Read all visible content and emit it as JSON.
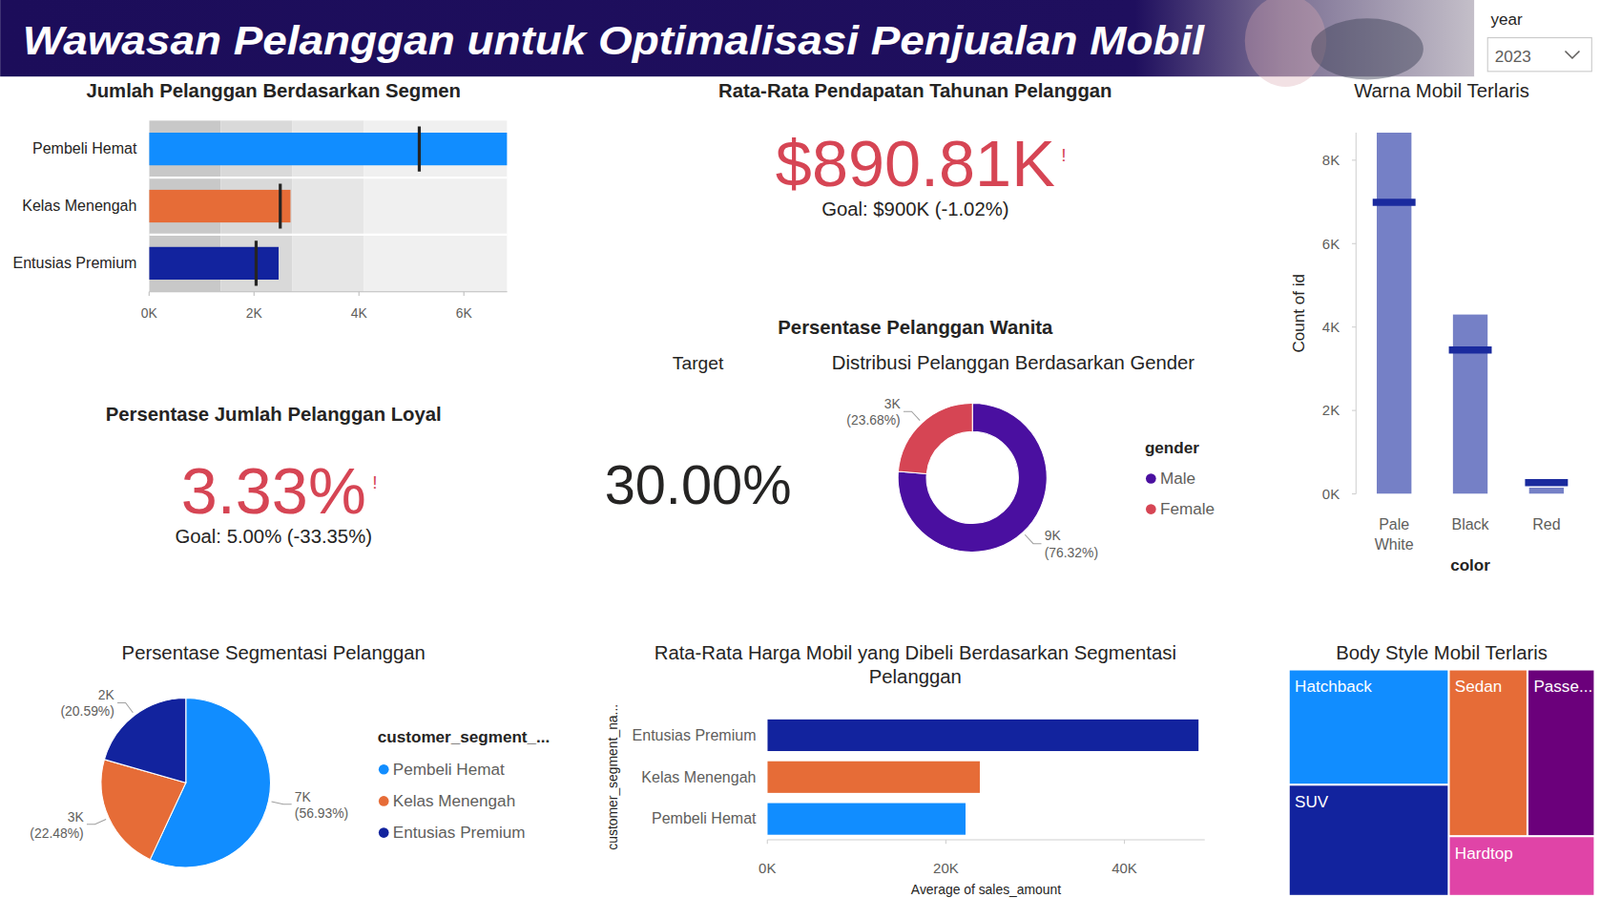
{
  "header": {
    "title": "Wawasan Pelanggan untuk Optimalisasi Penjualan Mobil",
    "slicer": {
      "label": "year",
      "value": "2023"
    }
  },
  "chart_data": [
    {
      "type": "bullet",
      "title": "Jumlah Pelanggan Berdasarkan Segmen",
      "orientation": "horizontal",
      "categories": [
        "Pembeli Hemat",
        "Kelas Menengah",
        "Entusias Premium"
      ],
      "values": [
        6826,
        2695,
        2469
      ],
      "targets": [
        5150,
        2500,
        2040
      ],
      "bands": [
        1365,
        2730,
        4096,
        6826
      ],
      "colors": [
        "#118DFF",
        "#E66C37",
        "#12239E"
      ],
      "xlim": [
        0,
        6826
      ],
      "xticks": [
        {
          "value": 0,
          "label": "0K"
        },
        {
          "value": 2000,
          "label": "2K"
        },
        {
          "value": 4000,
          "label": "4K"
        },
        {
          "value": 6000,
          "label": "6K"
        }
      ]
    },
    {
      "type": "kpi",
      "title": "Rata-Rata Pendapatan Tahunan Pelanggan",
      "value_label": "$890.81K",
      "alert": "!",
      "goal_label": "Goal: $900K (-1.02%)",
      "color": "#D64554"
    },
    {
      "type": "kpi",
      "title": "Persentase Jumlah Pelanggan Loyal",
      "value_label": "3.33%",
      "alert": "!",
      "goal_label": "Goal: 5.00% (-33.35%)",
      "color": "#D64554"
    },
    {
      "type": "card",
      "group_title": "Persentase Pelanggan Wanita",
      "title": "Target",
      "value_label": "30.00%"
    },
    {
      "type": "donut",
      "title": "Distribusi Pelanggan Berdasarkan Gender",
      "legend_title": "gender",
      "legend": "right",
      "data_labels": true,
      "categories": [
        "Male",
        "Female"
      ],
      "values": [
        76.32,
        23.68
      ],
      "value_labels": [
        "(76.32%)",
        "(23.68%)"
      ],
      "count_labels": [
        "9K",
        "3K"
      ],
      "colors": [
        "#4A0FA0",
        "#D64554"
      ]
    },
    {
      "type": "bar",
      "title": "Warna Mobil Terlaris",
      "categories": [
        "Pale White",
        "Black",
        "Red"
      ],
      "values": [
        8660,
        4300,
        150
      ],
      "targets": [
        6990,
        3450,
        270
      ],
      "color": "#7580C6",
      "ylim": [
        0,
        8660
      ],
      "yticks": [
        {
          "value": 0,
          "label": "0K"
        },
        {
          "value": 2000,
          "label": "2K"
        },
        {
          "value": 4000,
          "label": "4K"
        },
        {
          "value": 6000,
          "label": "6K"
        },
        {
          "value": 8000,
          "label": "8K"
        }
      ],
      "ylabel": "Count of id",
      "xlabel": "color"
    },
    {
      "type": "pie",
      "title": "Persentase Segmentasi Pelanggan",
      "legend_title": "customer_segment_...",
      "legend": "right",
      "data_labels": true,
      "categories": [
        "Pembeli Hemat",
        "Kelas Menengah",
        "Entusias Premium"
      ],
      "values": [
        56.93,
        22.48,
        20.59
      ],
      "value_labels": [
        "(56.93%)",
        "(22.48%)",
        "(20.59%)"
      ],
      "count_labels": [
        "7K",
        "3K",
        "2K"
      ],
      "colors": [
        "#118DFF",
        "#E66C37",
        "#12239E"
      ]
    },
    {
      "type": "bar",
      "orientation": "horizontal",
      "title": "Rata-Rata Harga Mobil yang Dibeli Berdasarkan Segmentasi Pelanggan",
      "categories": [
        "Entusias Premium",
        "Kelas Menengah",
        "Pembeli Hemat"
      ],
      "values": [
        48300,
        23800,
        22200
      ],
      "colors": [
        "#12239E",
        "#E66C37",
        "#118DFF"
      ],
      "xlim": [
        0,
        49000
      ],
      "xticks": [
        {
          "value": 0,
          "label": "0K"
        },
        {
          "value": 20000,
          "label": "20K"
        },
        {
          "value": 40000,
          "label": "40K"
        }
      ],
      "xlabel": "Average of sales_amount",
      "ylabel": "customer_segment_na..."
    },
    {
      "type": "treemap",
      "title": "Body Style Mobil Terlaris",
      "categories": [
        "Hatchback",
        "SUV",
        "Sedan",
        "Passe...",
        "Hardtop"
      ],
      "values": [
        3190,
        3080,
        2270,
        1940,
        1510
      ],
      "colors": [
        "#118DFF",
        "#12239E",
        "#E66C37",
        "#6B007B",
        "#E044A7"
      ]
    }
  ]
}
